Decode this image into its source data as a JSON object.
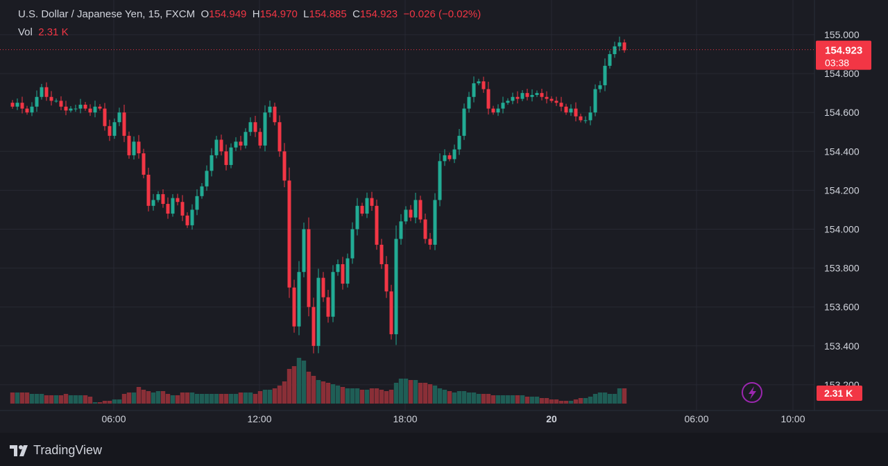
{
  "header": {
    "symbol": "U.S. Dollar / Japanese Yen, 15, FXCM",
    "o_label": "O",
    "o_value": "154.949",
    "h_label": "H",
    "h_value": "154.970",
    "l_label": "L",
    "l_value": "154.885",
    "c_label": "C",
    "c_value": "154.923",
    "change": "−0.026 (−0.02%)",
    "vol_label": "Vol",
    "vol_value": "2.31 K"
  },
  "price_tag": {
    "price": "154.923",
    "countdown": "03:38"
  },
  "vol_tag": "2.31 K",
  "branding": "TradingView",
  "colors": {
    "up": "#22ab94",
    "down": "#f23645",
    "bg": "#1b1c23",
    "grid": "#272933",
    "text": "#d1d4dc"
  },
  "chart_data": {
    "type": "candlestick",
    "timeframe": "15",
    "y_ticks": [
      "155.000",
      "154.800",
      "154.600",
      "154.400",
      "154.200",
      "154.000",
      "153.800",
      "153.600",
      "153.400",
      "153.200"
    ],
    "x_ticks": [
      "06:00",
      "12:00",
      "18:00",
      "20",
      "06:00",
      "10:00"
    ],
    "ylim": [
      153.1,
      155.08
    ],
    "current_price": 154.923,
    "close_path": [
      154.63,
      154.65,
      154.62,
      154.6,
      154.63,
      154.68,
      154.73,
      154.68,
      154.66,
      154.66,
      154.63,
      154.61,
      154.62,
      154.62,
      154.64,
      154.62,
      154.6,
      154.63,
      154.62,
      154.53,
      154.48,
      154.55,
      154.6,
      154.48,
      154.38,
      154.45,
      154.39,
      154.28,
      154.12,
      154.15,
      154.18,
      154.13,
      154.08,
      154.16,
      154.14,
      154.07,
      154.02,
      154.1,
      154.17,
      154.22,
      154.3,
      154.38,
      154.46,
      154.4,
      154.33,
      154.42,
      154.45,
      154.43,
      154.5,
      154.55,
      154.5,
      154.43,
      154.6,
      154.63,
      154.55,
      154.4,
      154.25,
      153.7,
      153.5,
      153.78,
      154.0,
      153.6,
      153.4,
      153.75,
      153.65,
      153.55,
      153.78,
      153.82,
      153.72,
      153.85,
      154.0,
      154.12,
      154.08,
      154.16,
      154.12,
      153.92,
      153.82,
      153.68,
      153.46,
      153.95,
      154.04,
      154.1,
      154.06,
      154.15,
      154.05,
      153.95,
      153.92,
      154.15,
      154.35,
      154.38,
      154.36,
      154.41,
      154.48,
      154.62,
      154.68,
      154.75,
      154.76,
      154.72,
      154.62,
      154.6,
      154.62,
      154.65,
      154.66,
      154.68,
      154.67,
      154.7,
      154.68,
      154.69,
      154.7,
      154.68,
      154.67,
      154.66,
      154.65,
      154.63,
      154.6,
      154.62,
      154.58,
      154.56,
      154.56,
      154.6,
      154.72,
      154.74,
      154.84,
      154.9,
      154.94,
      154.96,
      154.92
    ],
    "volume_levels": [
      8,
      8,
      8,
      8,
      7,
      7,
      7,
      6,
      6,
      6,
      6,
      7,
      6,
      6,
      6,
      6,
      5,
      1,
      1,
      2,
      2,
      3,
      3,
      7,
      8,
      8,
      12,
      10,
      9,
      8,
      9,
      9,
      7,
      6,
      6,
      8,
      8,
      8,
      7,
      7,
      7,
      7,
      7,
      7,
      7,
      7,
      7,
      8,
      8,
      8,
      7,
      9,
      10,
      10,
      11,
      13,
      16,
      25,
      27,
      33,
      31,
      23,
      20,
      17,
      16,
      15,
      14,
      13,
      12,
      11,
      11,
      11,
      10,
      10,
      11,
      11,
      10,
      9,
      10,
      15,
      18,
      18,
      17,
      17,
      15,
      15,
      14,
      13,
      11,
      10,
      9,
      8,
      9,
      9,
      8,
      8,
      7,
      7,
      7,
      6,
      6,
      6,
      6,
      6,
      6,
      6,
      5,
      5,
      5,
      4,
      4,
      3,
      3,
      2,
      2,
      2,
      3,
      4,
      4,
      5,
      7,
      8,
      8,
      7,
      7,
      11,
      11
    ]
  }
}
